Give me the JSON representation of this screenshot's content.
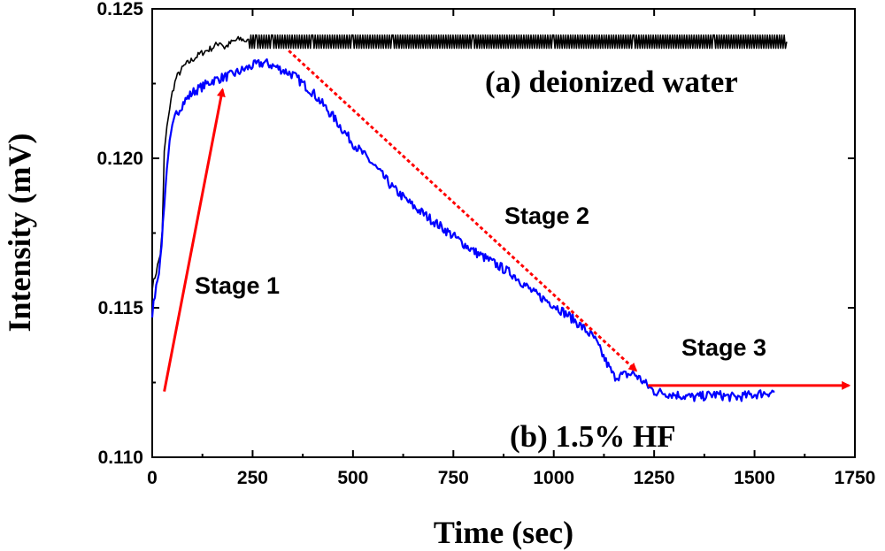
{
  "chart_data": {
    "type": "line",
    "title": "",
    "xlabel": "Time (sec)",
    "ylabel": "Intensity (mV)",
    "xlim": [
      0,
      1750
    ],
    "ylim": [
      0.11,
      0.125
    ],
    "x_ticks": [
      0,
      250,
      500,
      750,
      1000,
      1250,
      1500,
      1750
    ],
    "x_tick_labels": [
      "0",
      "250",
      "500",
      "750",
      "1000",
      "1250",
      "1500",
      "1750"
    ],
    "y_ticks": [
      0.11,
      0.115,
      0.12,
      0.125
    ],
    "y_tick_labels": [
      "0.110",
      "0.115",
      "0.120",
      "0.125"
    ],
    "series": [
      {
        "name": "(a) deionized water",
        "color": "#000000",
        "x": [
          0,
          10,
          20,
          25,
          30,
          40,
          50,
          60,
          80,
          100,
          120,
          150,
          170,
          180,
          200,
          220,
          240,
          260,
          300,
          400,
          500,
          600,
          800,
          1000,
          1200,
          1400,
          1580
        ],
        "y": [
          0.1157,
          0.1162,
          0.1168,
          0.1175,
          0.1202,
          0.1214,
          0.1222,
          0.1227,
          0.1231,
          0.1233,
          0.1235,
          0.1237,
          0.1239,
          0.1237,
          0.1239,
          0.124,
          0.1239,
          0.1239,
          0.1239,
          0.1239,
          0.1239,
          0.1239,
          0.1239,
          0.1239,
          0.1239,
          0.1239,
          0.1239
        ]
      },
      {
        "name": "(b) 1.5% HF",
        "color": "#0000ff",
        "x": [
          0,
          10,
          20,
          30,
          40,
          50,
          60,
          80,
          100,
          150,
          200,
          250,
          280,
          300,
          350,
          400,
          450,
          500,
          550,
          600,
          650,
          700,
          750,
          800,
          850,
          900,
          950,
          1000,
          1050,
          1100,
          1130,
          1150,
          1200,
          1250,
          1300,
          1350,
          1400,
          1450,
          1500,
          1550
        ],
        "y": [
          0.1148,
          0.1158,
          0.1165,
          0.1185,
          0.1202,
          0.121,
          0.1215,
          0.1219,
          0.1222,
          0.1226,
          0.1228,
          0.1231,
          0.1232,
          0.1231,
          0.1228,
          0.1222,
          0.1214,
          0.1205,
          0.1198,
          0.119,
          0.1184,
          0.1179,
          0.1174,
          0.1169,
          0.1165,
          0.1161,
          0.1155,
          0.1151,
          0.1146,
          0.114,
          0.1132,
          0.1127,
          0.1128,
          0.1122,
          0.1121,
          0.112,
          0.1121,
          0.112,
          0.1121,
          0.1122
        ]
      }
    ],
    "annotations": {
      "series_a_label": "(a) deionized water",
      "series_b_label": "(b) 1.5% HF",
      "stage1": "Stage 1",
      "stage2": "Stage 2",
      "stage3": "Stage 3",
      "arrow_color": "#ff0000",
      "stage1_arrow": {
        "from": [
          30,
          0.1122
        ],
        "to": [
          175,
          0.1223
        ]
      },
      "stage2_arrow": {
        "from": [
          340,
          0.1236
        ],
        "to": [
          1205,
          0.1129
        ]
      },
      "stage3_arrow": {
        "from": [
          1235,
          0.1124
        ],
        "to": [
          1735,
          0.1124
        ]
      }
    }
  }
}
